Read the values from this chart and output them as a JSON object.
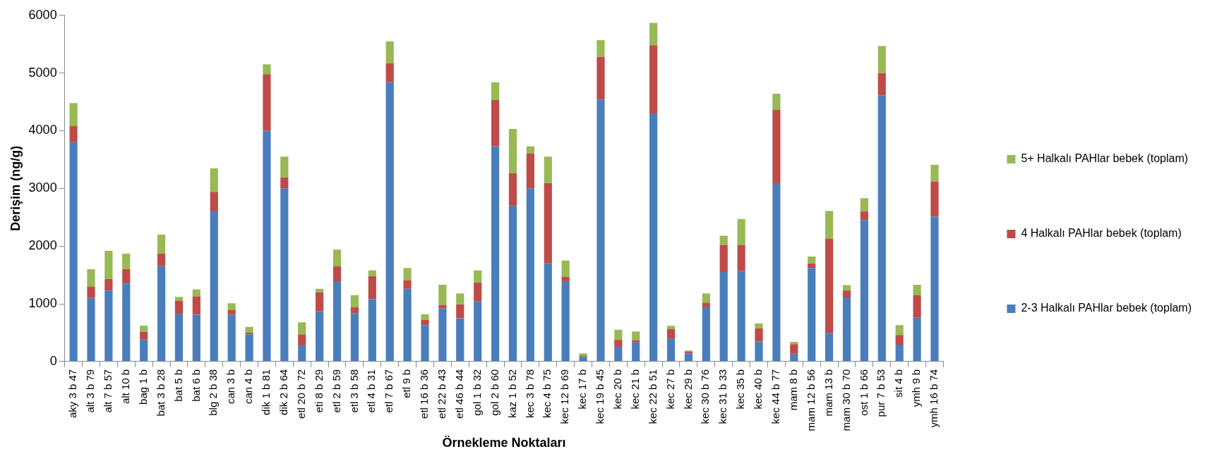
{
  "chart_data": {
    "type": "bar",
    "stacked": true,
    "xlabel": "Örnekleme Noktaları",
    "ylabel": "Derişim (ng/g)",
    "categories": [
      "aky 3 b 47",
      "alt 3 b 79",
      "alt 7 b 57",
      "alt 10 b",
      "bag 1 b",
      "bat 3 b 28",
      "bat 5 b",
      "bat 6 b",
      "blg 2 b 38",
      "can 3 b",
      "can 4 b",
      "dik 1 b 81",
      "dik 2 b 64",
      "etl 20 b 72",
      "eti 8 b 29",
      "etl 2 b 59",
      "etl 3 b 58",
      "etl 4 b 31",
      "etl 7 b 67",
      "etl 9 b",
      "etl 16 b 36",
      "etl 22 b 43",
      "etl 46 b 44",
      "gol 1 b 32",
      "gol 2 b 60",
      "kaz 1 b 52",
      "kec 3 b 78",
      "kec 4 b 75",
      "kec 12 b 69",
      "kec 17 b",
      "kec 19 b 45",
      "kec 20 b",
      "kec 21 b",
      "kec 22 b 51",
      "kec 27 b",
      "kec 29 b",
      "kec 30 b 76",
      "kec 31 b 33",
      "kec 35 b",
      "kec 40 b",
      "kec 44 b 77",
      "mam 8 b",
      "mam 12 b 56",
      "mam 13 b",
      "mam 30 b 70",
      "ost 1 b 66",
      "pur 7 b 53",
      "sit 4 b",
      "ymh 9 b",
      "ymh 16 b 74"
    ],
    "series": [
      {
        "name": "2-3 Halkalı PAHlar bebek (toplam)",
        "color": "#4a7ebb",
        "values": [
          3800,
          1100,
          1230,
          1350,
          380,
          1650,
          830,
          810,
          2600,
          810,
          470,
          4000,
          3000,
          280,
          870,
          1390,
          835,
          1080,
          4840,
          1260,
          630,
          920,
          750,
          1040,
          3730,
          2700,
          3000,
          1700,
          1380,
          80,
          4540,
          255,
          330,
          4300,
          400,
          140,
          940,
          1550,
          1570,
          345,
          3090,
          135,
          1620,
          490,
          1110,
          2450,
          4610,
          290,
          760,
          2510
        ]
      },
      {
        "name": "4 Halkalı PAHlar bebek (toplam)",
        "color": "#be4b48",
        "values": [
          280,
          200,
          200,
          250,
          130,
          220,
          220,
          320,
          340,
          80,
          30,
          980,
          190,
          190,
          330,
          260,
          105,
          400,
          330,
          150,
          90,
          60,
          240,
          330,
          800,
          560,
          610,
          1390,
          90,
          20,
          740,
          120,
          40,
          1180,
          160,
          30,
          80,
          470,
          450,
          230,
          1270,
          165,
          80,
          1640,
          120,
          150,
          390,
          170,
          390,
          610
        ]
      },
      {
        "name": "5+ Halkalı PAHlar bebek (toplam)",
        "color": "#98b954",
        "values": [
          400,
          300,
          490,
          270,
          110,
          330,
          70,
          120,
          410,
          120,
          100,
          170,
          360,
          210,
          60,
          290,
          210,
          100,
          380,
          210,
          100,
          350,
          190,
          210,
          310,
          770,
          120,
          460,
          280,
          40,
          290,
          175,
          150,
          390,
          60,
          20,
          160,
          160,
          450,
          85,
          280,
          40,
          120,
          480,
          95,
          230,
          470,
          170,
          180,
          290
        ]
      }
    ],
    "ylim": [
      0,
      6000
    ],
    "yticks": [
      0,
      1000,
      2000,
      3000,
      4000,
      5000,
      6000
    ],
    "grid": false,
    "legend": "right"
  }
}
